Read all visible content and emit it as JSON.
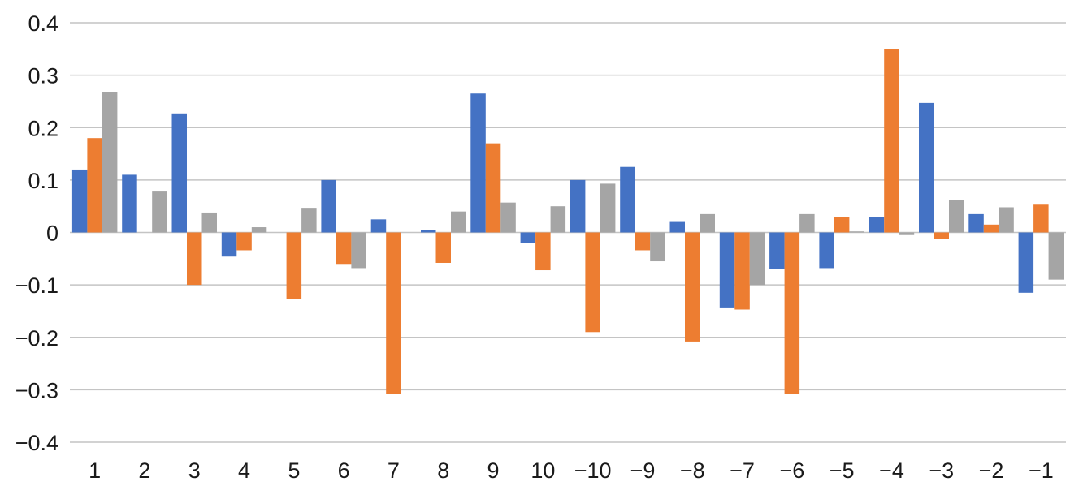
{
  "chart_data": {
    "type": "bar",
    "categories": [
      "1",
      "2",
      "3",
      "4",
      "5",
      "6",
      "7",
      "8",
      "9",
      "10",
      "−10",
      "−9",
      "−8",
      "−7",
      "−6",
      "−5",
      "−4",
      "−3",
      "−2",
      "−1"
    ],
    "series": [
      {
        "color": "#4472C4",
        "values": [
          0.12,
          0.11,
          0.227,
          -0.046,
          0.0,
          0.1,
          0.025,
          0.005,
          0.265,
          -0.02,
          0.1,
          0.125,
          0.02,
          -0.143,
          -0.07,
          -0.068,
          0.03,
          0.247,
          0.035,
          -0.115
        ]
      },
      {
        "color": "#ED7D31",
        "values": [
          0.18,
          0.0,
          -0.1,
          -0.034,
          -0.127,
          -0.06,
          -0.308,
          -0.058,
          0.17,
          -0.072,
          -0.19,
          -0.034,
          -0.208,
          -0.147,
          -0.308,
          0.03,
          0.35,
          -0.013,
          0.015,
          0.053
        ]
      },
      {
        "color": "#A5A5A5",
        "values": [
          0.267,
          0.078,
          0.038,
          0.01,
          0.047,
          -0.068,
          0.0,
          0.04,
          0.057,
          0.05,
          0.093,
          -0.055,
          0.035,
          -0.1,
          0.035,
          0.002,
          -0.005,
          0.062,
          0.048,
          -0.09
        ]
      }
    ],
    "yticks": [
      "0.4",
      "0.3",
      "0.2",
      "0.1",
      "0",
      "-0.1",
      "-0.2",
      "-0.3",
      "-0.4"
    ],
    "ylim": [
      -0.4,
      0.4
    ],
    "grid": true,
    "legend": "none"
  }
}
